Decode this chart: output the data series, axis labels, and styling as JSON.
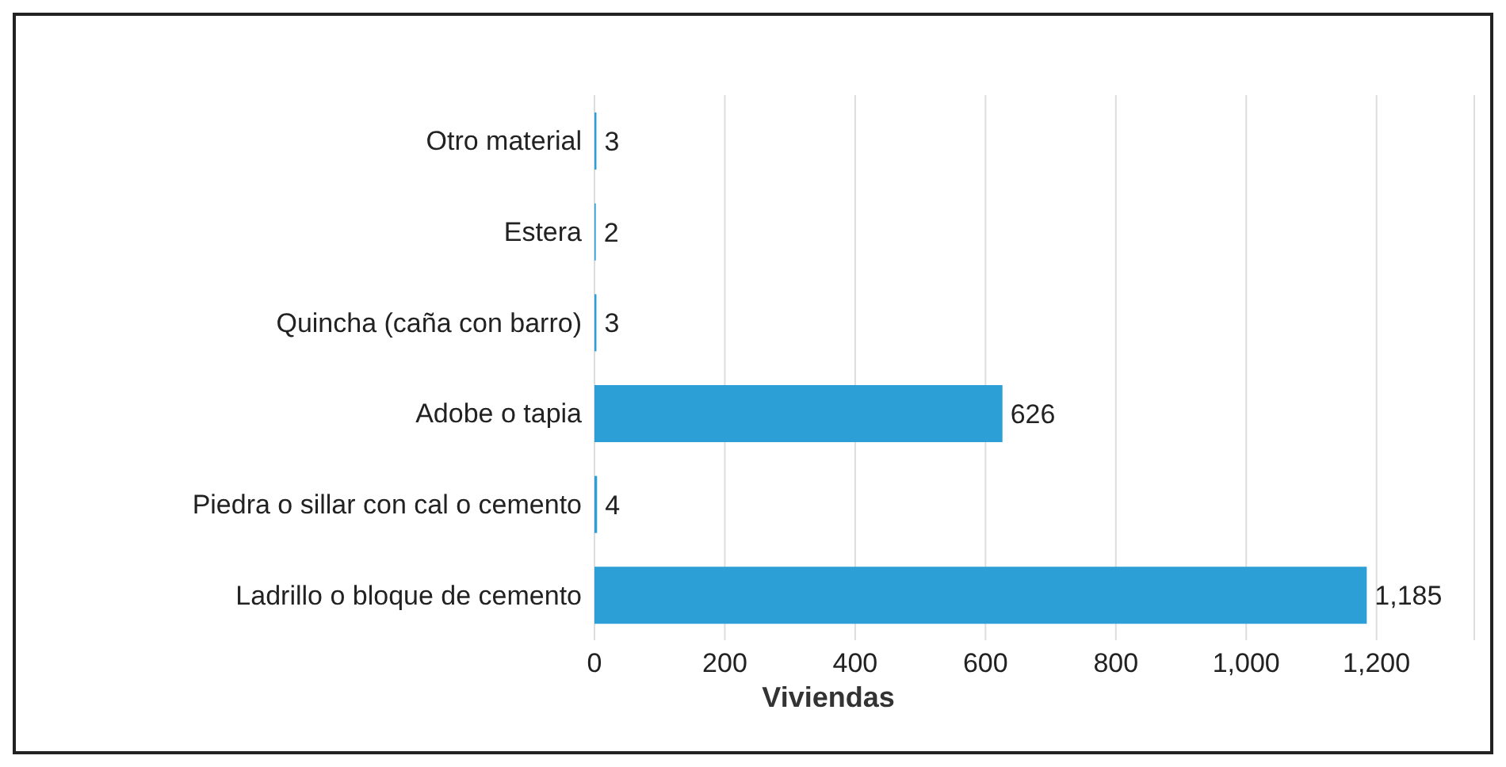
{
  "chart_data": {
    "type": "bar",
    "orientation": "horizontal",
    "xlabel": "Viviendas",
    "categories": [
      "Otro material",
      "Estera",
      "Quincha (caña con barro)",
      "Adobe o tapia",
      "Piedra o sillar con cal o cemento",
      "Ladrillo o bloque de cemento"
    ],
    "values": [
      3,
      2,
      3,
      626,
      4,
      1185
    ],
    "value_labels": [
      "3",
      "2",
      "3",
      "626",
      "4",
      "1,185"
    ],
    "color": "#2b9fd6",
    "xlim": [
      0,
      1350
    ],
    "xticks": [
      0,
      200,
      400,
      600,
      800,
      {
        "value": 1000,
        "label": "1,000"
      },
      {
        "value": 1200,
        "label": "1,200"
      }
    ],
    "grid": "x"
  }
}
